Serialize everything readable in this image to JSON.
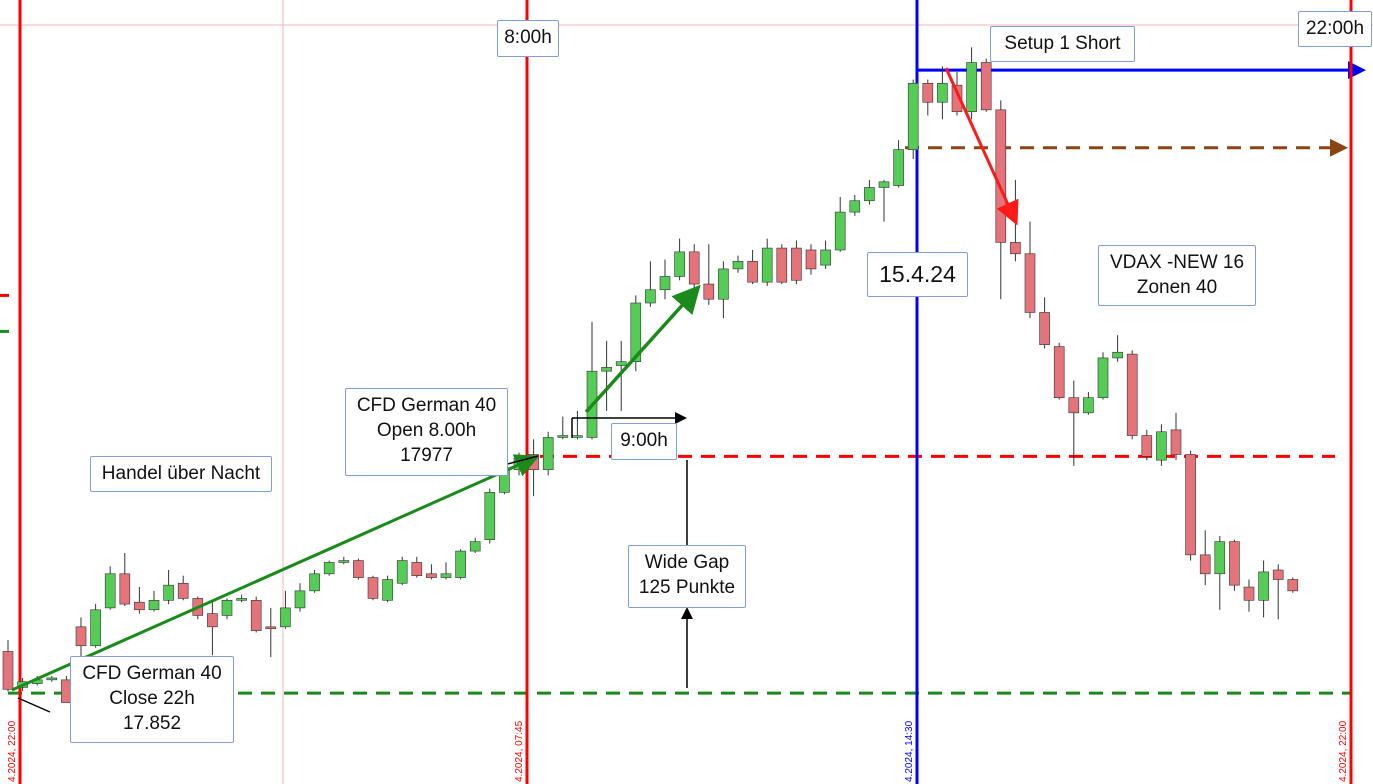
{
  "chart_data": {
    "type": "candlestick",
    "ylim": [
      17804,
      18218
    ],
    "colors": {
      "up": "#55cc55",
      "down": "#e4737a"
    },
    "candles": {
      "open": [
        17874,
        17855,
        17857,
        17859,
        17859,
        17887,
        17877,
        17897,
        17915,
        17900,
        17896,
        17901,
        17910,
        17902,
        17894,
        17893,
        17901,
        17901,
        17887,
        17887,
        17897,
        17906,
        17915,
        17921,
        17922,
        17913,
        17901,
        17910,
        17921,
        17915,
        17913,
        17913,
        17927,
        17933,
        17958,
        17970,
        17978,
        17970,
        17987,
        17987,
        17987,
        18022,
        18025,
        18027,
        18058,
        18065,
        18072,
        18085,
        18068,
        18060,
        18076,
        18080,
        18069,
        18087,
        18087,
        18086,
        18078,
        18086,
        18106,
        18112,
        18119,
        18120,
        18139,
        18174,
        18164,
        18173,
        18159,
        18185,
        18160,
        18090,
        18084,
        18053,
        18035,
        18008,
        18000,
        18008,
        18029,
        18031,
        17988,
        17975,
        17991,
        17978,
        17925,
        17915,
        17932,
        17908,
        17901,
        17917,
        17912
      ],
      "high": [
        17880,
        17860,
        17861,
        17861,
        17861,
        17892,
        17899,
        17919,
        17926,
        17908,
        17906,
        17917,
        17914,
        17903,
        17900,
        17902,
        17904,
        17903,
        17897,
        17906,
        17910,
        17917,
        17922,
        17924,
        17923,
        17914,
        17914,
        17924,
        17924,
        17920,
        17921,
        17928,
        17934,
        17960,
        17975,
        17979,
        17986,
        17990,
        17998,
        18001,
        18048,
        18038,
        18038,
        18062,
        18080,
        18081,
        18092,
        18089,
        18089,
        18080,
        18083,
        18086,
        18092,
        18089,
        18091,
        18089,
        18091,
        18114,
        18115,
        18123,
        18123,
        18144,
        18176,
        18176,
        18183,
        18180,
        18193,
        18187,
        18165,
        18123,
        18101,
        18061,
        18037,
        18017,
        18011,
        18032,
        18041,
        18033,
        17991,
        17994,
        18000,
        17980,
        17938,
        17935,
        17933,
        17912,
        17922,
        17920,
        17913
      ],
      "low": [
        17853,
        17853,
        17856,
        17858,
        17847,
        17870,
        17876,
        17896,
        17898,
        17894,
        17895,
        17899,
        17901,
        17891,
        17872,
        17891,
        17900,
        17884,
        17871,
        17886,
        17895,
        17905,
        17914,
        17920,
        17912,
        17901,
        17900,
        17909,
        17913,
        17912,
        17912,
        17912,
        17926,
        17931,
        17957,
        17967,
        17956,
        17967,
        17986,
        17986,
        17986,
        18001,
        18001,
        18022,
        18056,
        18060,
        18070,
        18065,
        18057,
        18050,
        18074,
        18068,
        18067,
        18068,
        18068,
        18073,
        18076,
        18085,
        18104,
        18110,
        18101,
        18119,
        18134,
        18157,
        18155,
        18157,
        18155,
        18159,
        18060,
        18080,
        18050,
        18034,
        18007,
        17972,
        17999,
        18007,
        18027,
        17986,
        17975,
        17972,
        17975,
        17922,
        17909,
        17896,
        17906,
        17895,
        17892,
        17891,
        17905
      ],
      "close": [
        17854,
        17858,
        17859,
        17860,
        17847,
        17877,
        17896,
        17915,
        17899,
        17896,
        17901,
        17909,
        17902,
        17893,
        17887,
        17901,
        17902,
        17885,
        17886,
        17897,
        17906,
        17915,
        17921,
        17922,
        17913,
        17902,
        17912,
        17922,
        17914,
        17913,
        17915,
        17927,
        17932,
        17958,
        17971,
        17976,
        17970,
        17987,
        17988,
        17988,
        18022,
        18024,
        18027,
        18058,
        18065,
        18072,
        18085,
        18068,
        18060,
        18076,
        18080,
        18069,
        18087,
        18069,
        18070,
        18076,
        18086,
        18106,
        18112,
        18119,
        18122,
        18139,
        18174,
        18164,
        18174,
        18159,
        18185,
        18160,
        18090,
        18084,
        18053,
        18036,
        18008,
        18000,
        18008,
        18029,
        18032,
        17988,
        17977,
        17990,
        17978,
        17925,
        17915,
        17932,
        17909,
        17901,
        17916,
        17912,
        17906
      ]
    },
    "sessions": [
      {
        "label": "4.2024, 22:00",
        "color": "#ff0000"
      },
      {
        "label": "4.2024, 07:45",
        "color": "#ff0000"
      },
      {
        "label": "4.2024, 14:30",
        "color": "#0000ff"
      },
      {
        "label": "4.2024, 22:00",
        "color": "#ff0000"
      }
    ],
    "levels": [
      {
        "value": 17977,
        "color": "#ff0000"
      },
      {
        "value": 17852,
        "color": "#1a8a1a"
      },
      {
        "value": 18140,
        "color": "#8b4513"
      },
      {
        "value": 18181,
        "color": "#0000ff"
      }
    ],
    "edge_markers": [
      {
        "value": 18062,
        "color": "#ff0000"
      },
      {
        "value": 18043,
        "color": "#1a8a1a"
      }
    ],
    "annotations": [
      {
        "lines": [
          "8:00h"
        ]
      },
      {
        "lines": [
          "22:00h"
        ]
      },
      {
        "lines": [
          "Setup 1 Short"
        ]
      },
      {
        "lines": [
          "15.4.24"
        ]
      },
      {
        "lines": [
          "VDAX -NEW 16",
          "Zonen 40"
        ]
      },
      {
        "lines": [
          "CFD German 40",
          "Open 8.00h",
          "17977"
        ]
      },
      {
        "lines": [
          "9:00h"
        ]
      },
      {
        "lines": [
          "Handel über Nacht"
        ]
      },
      {
        "lines": [
          "Wide Gap",
          "125 Punkte"
        ]
      },
      {
        "lines": [
          "CFD German 40",
          "Close 22h",
          "17.852"
        ]
      }
    ]
  }
}
